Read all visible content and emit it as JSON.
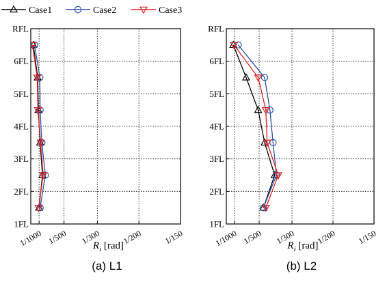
{
  "legend": [
    {
      "name": "Case1",
      "color": "#000000",
      "marker": "triangle-up"
    },
    {
      "name": "Case2",
      "color": "#2f4fa8",
      "marker": "circle"
    },
    {
      "name": "Case3",
      "color": "#e02020",
      "marker": "triangle-down"
    }
  ],
  "chart_data": [
    {
      "type": "line",
      "caption": "(a) L1",
      "xlabel_var": "R",
      "xlabel_sub": "i",
      "xlabel_unit": "[rad]",
      "x_scale": "reciprocal",
      "x_range_reciprocal": [
        1500,
        150
      ],
      "x_ticks": [
        "1/1000",
        "1/500",
        "1/300",
        "1/200",
        "1/150"
      ],
      "x_tick_values": [
        1000,
        500,
        300,
        200,
        150
      ],
      "floors": [
        "1FL",
        "2FL",
        "3FL",
        "4FL",
        "5FL",
        "6FL",
        "RFL"
      ],
      "grid": true,
      "series": [
        {
          "name": "Case1",
          "story": [
            1,
            2,
            3,
            4,
            5,
            6
          ],
          "x_reciprocal": [
            1000,
            880,
            960,
            1030,
            1060,
            1300
          ]
        },
        {
          "name": "Case2",
          "story": [
            1,
            2,
            3,
            4,
            5,
            6
          ],
          "x_reciprocal": [
            960,
            800,
            900,
            960,
            970,
            1220
          ]
        },
        {
          "name": "Case3",
          "story": [
            1,
            2,
            3,
            4,
            5,
            6
          ],
          "x_reciprocal": [
            1020,
            860,
            940,
            1050,
            1080,
            1360
          ]
        }
      ]
    },
    {
      "type": "line",
      "caption": "(b) L2",
      "xlabel_var": "R",
      "xlabel_sub": "i",
      "xlabel_unit": "[rad]",
      "x_scale": "reciprocal",
      "x_range_reciprocal": [
        1500,
        150
      ],
      "x_ticks": [
        "1/1000",
        "1/500",
        "1/300",
        "1/200",
        "1/150"
      ],
      "x_tick_values": [
        1000,
        500,
        300,
        200,
        150
      ],
      "floors": [
        "1FL",
        "2FL",
        "3FL",
        "4FL",
        "5FL",
        "6FL",
        "RFL"
      ],
      "grid": true,
      "series": [
        {
          "name": "Case1",
          "story": [
            1,
            2,
            3,
            4,
            5,
            6
          ],
          "x_reciprocal": [
            460,
            380,
            450,
            510,
            680,
            1050
          ]
        },
        {
          "name": "Case2",
          "story": [
            1,
            2,
            3,
            4,
            5,
            6
          ],
          "x_reciprocal": [
            460,
            370,
            390,
            410,
            450,
            870
          ]
        },
        {
          "name": "Case3",
          "story": [
            1,
            2,
            3,
            4,
            5,
            6
          ],
          "x_reciprocal": [
            440,
            360,
            430,
            440,
            510,
            1020
          ]
        }
      ]
    }
  ]
}
